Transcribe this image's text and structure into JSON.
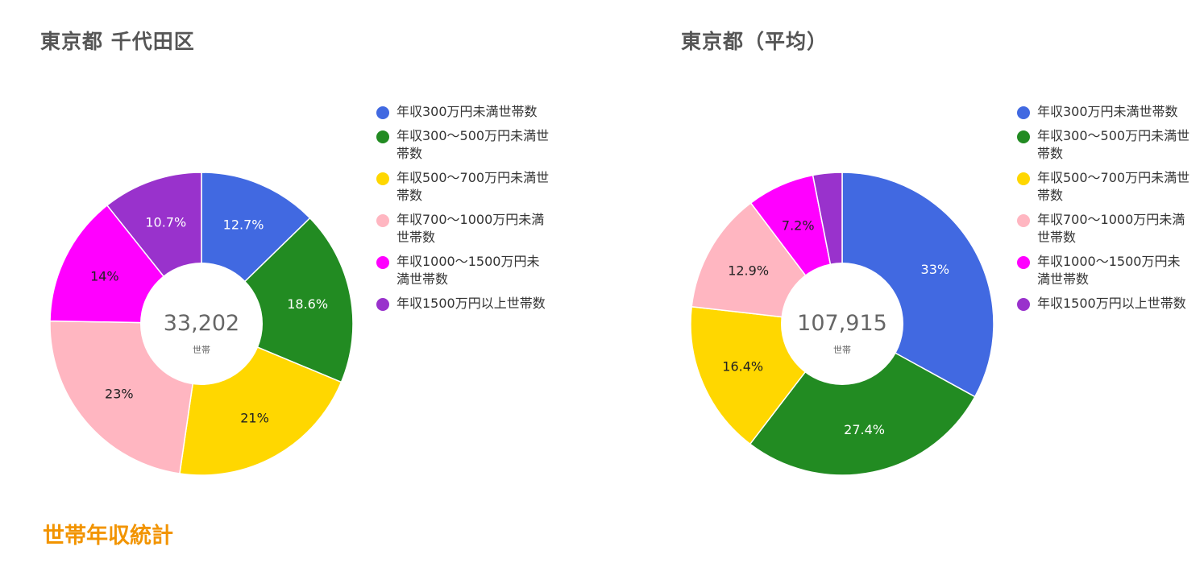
{
  "footer_title": "世帯年収統計",
  "chart_data": [
    {
      "type": "pie",
      "variant": "donut",
      "title": "東京都 千代田区",
      "center_value": "33,202",
      "center_unit": "世帯",
      "categories": [
        "年収300万円未満世帯数",
        "年収300～500万円未満世帯数",
        "年収500～700万円未満世帯数",
        "年収700～1000万円未満世帯数",
        "年収1000～1500万円未満世帯数",
        "年収1500万円以上世帯数"
      ],
      "values": [
        12.7,
        18.6,
        21,
        23,
        14,
        10.7
      ],
      "value_labels": [
        "12.7%",
        "18.6%",
        "21%",
        "23%",
        "14%",
        "10.7%"
      ],
      "colors": [
        "#4169e1",
        "#228b22",
        "#ffd700",
        "#ffb6c1",
        "#ff00ff",
        "#9932cc"
      ],
      "label_colors": [
        "#ffffff",
        "#ffffff",
        "#222222",
        "#222222",
        "#222222",
        "#ffffff"
      ],
      "legend_position": "right"
    },
    {
      "type": "pie",
      "variant": "donut",
      "title": "東京都（平均）",
      "center_value": "107,915",
      "center_unit": "世帯",
      "categories": [
        "年収300万円未満世帯数",
        "年収300～500万円未満世帯数",
        "年収500～700万円未満世帯数",
        "年収700～1000万円未満世帯数",
        "年収1000～1500万円未満世帯数",
        "年収1500万円以上世帯数"
      ],
      "values": [
        33,
        27.4,
        16.4,
        12.9,
        7.2,
        3.1
      ],
      "value_labels": [
        "33%",
        "27.4%",
        "16.4%",
        "12.9%",
        "7.2%",
        ""
      ],
      "colors": [
        "#4169e1",
        "#228b22",
        "#ffd700",
        "#ffb6c1",
        "#ff00ff",
        "#9932cc"
      ],
      "label_colors": [
        "#ffffff",
        "#ffffff",
        "#222222",
        "#222222",
        "#222222",
        "#ffffff"
      ],
      "legend_position": "right"
    }
  ]
}
